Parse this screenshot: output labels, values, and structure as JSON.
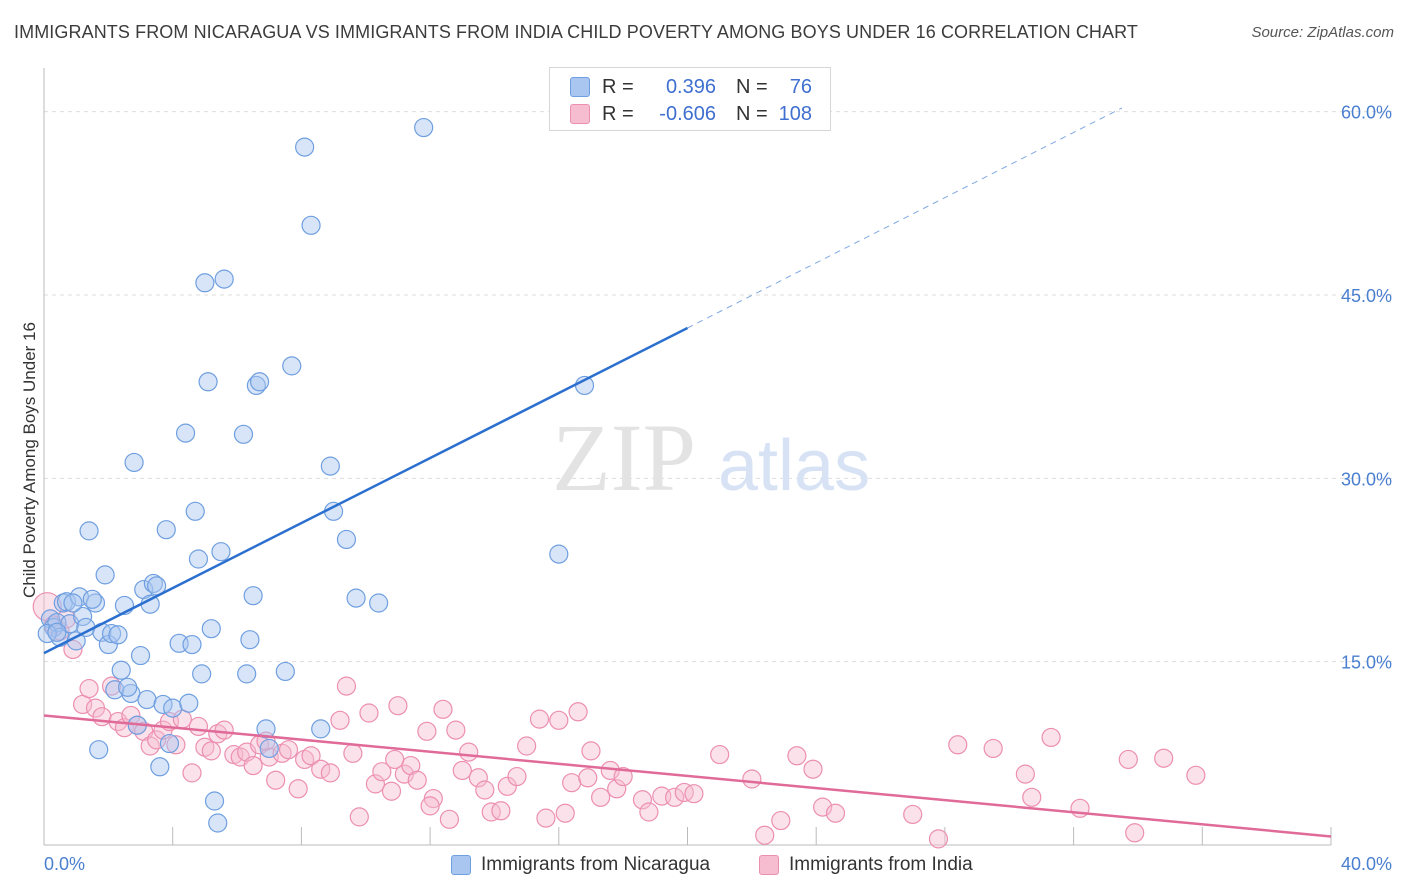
{
  "title": "IMMIGRANTS FROM NICARAGUA VS IMMIGRANTS FROM INDIA CHILD POVERTY AMONG BOYS UNDER 16 CORRELATION CHART",
  "source": "Source: ZipAtlas.com",
  "watermark": {
    "zip": "ZIP",
    "atlas": "atlas"
  },
  "legend": {
    "rows": [
      {
        "r_label": "R =",
        "r_value": "0.396",
        "n_label": "N =",
        "n_value": "76",
        "color": "#a9c6f0"
      },
      {
        "r_label": "R =",
        "r_value": "-0.606",
        "n_label": "N =",
        "n_value": "108",
        "color": "#f6bcd0"
      }
    ]
  },
  "bottom_legend": {
    "nicaragua": "Immigrants from Nicaragua",
    "india": "Immigrants from India"
  },
  "colors": {
    "nicaragua_fill": "#a9c6f0",
    "nicaragua_stroke": "#6f9fe0",
    "nicaragua_line": "#2b6fcf",
    "india_fill": "#f6bcd0",
    "india_stroke": "#ec8fb0",
    "india_line": "#e06a98",
    "tick_text": "#4a7fd0",
    "grid": "#dddddd"
  },
  "chart_data": {
    "type": "scatter",
    "title": "IMMIGRANTS FROM NICARAGUA VS IMMIGRANTS FROM INDIA CHILD POVERTY AMONG BOYS UNDER 16 CORRELATION CHART",
    "xlabel": "",
    "ylabel": "Child Poverty Among Boys Under 16",
    "xlim": [
      0,
      40
    ],
    "ylim": [
      0,
      63
    ],
    "x_tick_labels": [
      "0.0%",
      "40.0%"
    ],
    "y_ticks": [
      15,
      30,
      45,
      60
    ],
    "y_tick_labels": [
      "15.0%",
      "30.0%",
      "45.0%",
      "60.0%"
    ],
    "grid": "horizontal dashed",
    "legend_position": "top-center",
    "series": [
      {
        "name": "Immigrants from Nicaragua",
        "trend": {
          "x_start": 0,
          "y_start": 15.7,
          "x_solid_end": 20,
          "y_solid_end": 42.3,
          "x_dash_end": 33.5,
          "y_dash_end": 60.3
        },
        "points": [
          [
            0.2,
            18.5
          ],
          [
            0.3,
            17.8
          ],
          [
            0.4,
            18.2
          ],
          [
            0.5,
            17.0
          ],
          [
            0.6,
            19.8
          ],
          [
            0.7,
            19.9
          ],
          [
            0.8,
            18.1
          ],
          [
            1.0,
            16.7
          ],
          [
            1.1,
            20.3
          ],
          [
            1.2,
            18.7
          ],
          [
            1.3,
            17.8
          ],
          [
            1.4,
            25.7
          ],
          [
            1.6,
            19.8
          ],
          [
            1.8,
            17.4
          ],
          [
            1.9,
            22.1
          ],
          [
            2.0,
            16.4
          ],
          [
            2.1,
            17.3
          ],
          [
            2.2,
            12.7
          ],
          [
            2.3,
            17.2
          ],
          [
            2.4,
            14.3
          ],
          [
            2.5,
            19.6
          ],
          [
            2.7,
            12.4
          ],
          [
            2.8,
            31.3
          ],
          [
            2.9,
            9.8
          ],
          [
            3.0,
            15.5
          ],
          [
            3.1,
            20.9
          ],
          [
            3.2,
            11.9
          ],
          [
            3.3,
            19.7
          ],
          [
            3.4,
            21.4
          ],
          [
            3.6,
            6.4
          ],
          [
            3.7,
            11.5
          ],
          [
            3.8,
            25.8
          ],
          [
            3.9,
            8.3
          ],
          [
            4.0,
            11.2
          ],
          [
            4.2,
            16.5
          ],
          [
            4.4,
            33.7
          ],
          [
            4.6,
            16.4
          ],
          [
            4.7,
            27.3
          ],
          [
            4.8,
            23.4
          ],
          [
            4.9,
            14.0
          ],
          [
            5.0,
            46.0
          ],
          [
            5.1,
            37.9
          ],
          [
            5.2,
            17.7
          ],
          [
            5.3,
            3.6
          ],
          [
            5.4,
            1.8
          ],
          [
            5.5,
            24.0
          ],
          [
            5.6,
            46.3
          ],
          [
            6.2,
            33.6
          ],
          [
            6.3,
            14.0
          ],
          [
            6.4,
            16.8
          ],
          [
            6.5,
            20.4
          ],
          [
            6.6,
            37.6
          ],
          [
            6.7,
            37.9
          ],
          [
            6.9,
            9.5
          ],
          [
            7.0,
            7.9
          ],
          [
            7.5,
            14.2
          ],
          [
            7.7,
            39.2
          ],
          [
            8.1,
            57.1
          ],
          [
            8.3,
            50.7
          ],
          [
            8.6,
            9.5
          ],
          [
            8.9,
            31.0
          ],
          [
            9.0,
            27.3
          ],
          [
            9.4,
            25.0
          ],
          [
            9.7,
            20.2
          ],
          [
            10.4,
            19.8
          ],
          [
            11.8,
            58.7
          ],
          [
            16.0,
            23.8
          ],
          [
            16.8,
            37.6
          ],
          [
            0.1,
            17.3
          ],
          [
            0.9,
            19.8
          ],
          [
            1.5,
            20.1
          ],
          [
            2.6,
            12.9
          ],
          [
            3.5,
            21.2
          ],
          [
            4.5,
            11.6
          ],
          [
            1.7,
            7.8
          ],
          [
            0.4,
            17.4
          ]
        ]
      },
      {
        "name": "Immigrants from India",
        "trend": {
          "x_start": 0,
          "y_start": 10.6,
          "x_end": 40,
          "y_end": 0.7
        },
        "points": [
          [
            0.1,
            19.5
          ],
          [
            0.3,
            18.0
          ],
          [
            0.5,
            17.5
          ],
          [
            0.7,
            18.5
          ],
          [
            0.9,
            16.0
          ],
          [
            1.2,
            11.5
          ],
          [
            1.4,
            12.8
          ],
          [
            1.6,
            11.2
          ],
          [
            1.8,
            10.5
          ],
          [
            2.1,
            13.0
          ],
          [
            2.3,
            10.1
          ],
          [
            2.5,
            9.6
          ],
          [
            2.7,
            10.6
          ],
          [
            2.9,
            9.8
          ],
          [
            3.1,
            9.3
          ],
          [
            3.3,
            8.1
          ],
          [
            3.5,
            8.6
          ],
          [
            3.7,
            9.4
          ],
          [
            3.9,
            10.1
          ],
          [
            4.1,
            8.2
          ],
          [
            4.3,
            10.3
          ],
          [
            4.6,
            5.9
          ],
          [
            4.8,
            9.7
          ],
          [
            5.0,
            8.0
          ],
          [
            5.2,
            7.7
          ],
          [
            5.4,
            9.1
          ],
          [
            5.6,
            9.4
          ],
          [
            5.9,
            7.4
          ],
          [
            6.1,
            7.2
          ],
          [
            6.3,
            7.6
          ],
          [
            6.5,
            6.5
          ],
          [
            6.7,
            8.2
          ],
          [
            7.0,
            7.2
          ],
          [
            7.2,
            5.3
          ],
          [
            7.4,
            7.5
          ],
          [
            7.6,
            7.8
          ],
          [
            7.9,
            4.6
          ],
          [
            8.1,
            7.0
          ],
          [
            8.3,
            7.3
          ],
          [
            8.6,
            6.2
          ],
          [
            8.9,
            5.9
          ],
          [
            9.2,
            10.2
          ],
          [
            9.4,
            13.0
          ],
          [
            9.6,
            7.5
          ],
          [
            9.8,
            2.3
          ],
          [
            10.1,
            10.8
          ],
          [
            10.3,
            5.0
          ],
          [
            10.5,
            6.0
          ],
          [
            10.8,
            4.4
          ],
          [
            11.0,
            11.4
          ],
          [
            11.2,
            5.8
          ],
          [
            11.4,
            6.5
          ],
          [
            11.6,
            5.3
          ],
          [
            11.9,
            9.3
          ],
          [
            12.1,
            3.8
          ],
          [
            12.4,
            11.1
          ],
          [
            12.6,
            2.1
          ],
          [
            12.8,
            9.4
          ],
          [
            13.0,
            6.1
          ],
          [
            13.2,
            7.6
          ],
          [
            13.5,
            5.5
          ],
          [
            13.7,
            4.5
          ],
          [
            13.9,
            2.7
          ],
          [
            14.2,
            2.8
          ],
          [
            14.4,
            4.8
          ],
          [
            14.7,
            5.6
          ],
          [
            15.0,
            8.1
          ],
          [
            15.4,
            10.3
          ],
          [
            15.6,
            2.2
          ],
          [
            16.0,
            10.2
          ],
          [
            16.2,
            2.6
          ],
          [
            16.4,
            5.1
          ],
          [
            16.6,
            10.9
          ],
          [
            16.9,
            5.5
          ],
          [
            17.3,
            3.9
          ],
          [
            17.6,
            6.1
          ],
          [
            17.8,
            4.6
          ],
          [
            18.0,
            5.6
          ],
          [
            18.6,
            3.7
          ],
          [
            18.8,
            2.7
          ],
          [
            19.2,
            4.0
          ],
          [
            19.6,
            3.9
          ],
          [
            19.9,
            4.3
          ],
          [
            20.2,
            4.2
          ],
          [
            21.0,
            7.4
          ],
          [
            22.0,
            5.4
          ],
          [
            22.4,
            0.8
          ],
          [
            22.9,
            2.0
          ],
          [
            23.4,
            7.3
          ],
          [
            23.9,
            6.2
          ],
          [
            24.2,
            3.1
          ],
          [
            24.6,
            2.6
          ],
          [
            27.0,
            2.5
          ],
          [
            27.8,
            0.5
          ],
          [
            28.4,
            8.2
          ],
          [
            29.5,
            7.9
          ],
          [
            30.5,
            5.8
          ],
          [
            30.7,
            3.9
          ],
          [
            31.3,
            8.8
          ],
          [
            32.2,
            3.0
          ],
          [
            33.7,
            7.0
          ],
          [
            33.9,
            1.0
          ],
          [
            34.8,
            7.1
          ],
          [
            35.8,
            5.7
          ],
          [
            17.0,
            7.7
          ],
          [
            12.0,
            3.2
          ],
          [
            6.9,
            8.5
          ],
          [
            10.9,
            7.0
          ]
        ]
      }
    ]
  }
}
